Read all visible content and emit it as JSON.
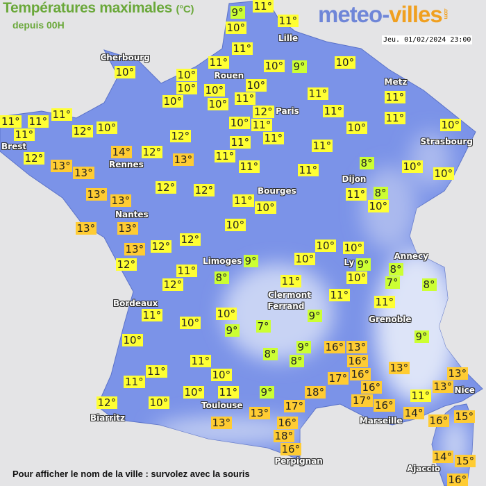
{
  "header": {
    "title": "Températures maximales",
    "unit": "(°C)",
    "subtitle": "depuis 00H",
    "logo_main": "meteo-",
    "logo_accent": "villes",
    "logo_suffix": ".com",
    "date": "Jeu. 01/02/2024 23:00"
  },
  "footer": "Pour afficher le nom de la ville : survolez avec la souris",
  "colors": {
    "background": "#e4e4e6",
    "land": "#7b93e8",
    "land_highland": "#b8c6f0",
    "cold_label": "#ccff33",
    "mild_label": "#ffff33",
    "warm_label": "#ffcc33",
    "title": "#6aa83a"
  },
  "legend_thresholds": {
    "cold_max": 9,
    "mild_max": 12
  },
  "cities": [
    "Lille",
    "Cherbourg",
    "Rouen",
    "Metz",
    "Paris",
    "Brest",
    "Strasbourg",
    "Rennes",
    "Dijon",
    "Bourges",
    "Nantes",
    "Annecy",
    "Limoges",
    "Ly",
    "Clermont",
    "Ferrand",
    "Grenoble",
    "Bordeaux",
    "Nice",
    "Toulouse",
    "Marseille",
    "Biarritz",
    "Perpignan",
    "Ajaccio"
  ],
  "temperatures": [
    9,
    11,
    10,
    11,
    11,
    10,
    11,
    10,
    10,
    10,
    9,
    10,
    10,
    10,
    10,
    11,
    10,
    11,
    11,
    12,
    11,
    11,
    11,
    11,
    11,
    11,
    12,
    10,
    10,
    11,
    10,
    10,
    12,
    11,
    14,
    12,
    11,
    11,
    12,
    13,
    11,
    13,
    13,
    11,
    11,
    8,
    10,
    10,
    12,
    12,
    13,
    13,
    11,
    10,
    11,
    8,
    10,
    13,
    13,
    10,
    12,
    12,
    10,
    10,
    13,
    12,
    9,
    10,
    9,
    8,
    10,
    11,
    8,
    7,
    8,
    12,
    11,
    11,
    11,
    11,
    10,
    9,
    10,
    7,
    9,
    10,
    9,
    8,
    9,
    16,
    13,
    8,
    16,
    11,
    11,
    13,
    10,
    17,
    16,
    13,
    11,
    16,
    13,
    10,
    11,
    9,
    18,
    17,
    11,
    12,
    10,
    17,
    16,
    13,
    14,
    15,
    16,
    13,
    16,
    18,
    16,
    14,
    15,
    16
  ]
}
